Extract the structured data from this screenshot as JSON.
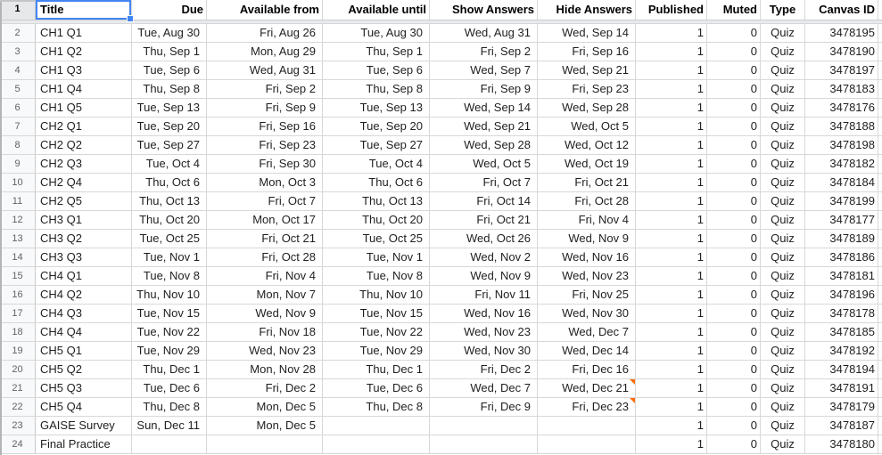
{
  "app": {
    "name": "spreadsheet-grid"
  },
  "colors": {
    "selection_blue": "#4285f4",
    "note_orange": "#ff6d01",
    "gridline": "#d8d8d8",
    "row_header_bg": "#f8f9fa",
    "row_header_selected_bg": "#e6e8ea",
    "frozen_divider_bg": "#e8eaed"
  },
  "sheet": {
    "selected_cell": {
      "row": "1",
      "column": "title"
    },
    "header_row_number": "1",
    "columns": [
      {
        "key": "title",
        "label": "Title",
        "align": "left",
        "kind": "text"
      },
      {
        "key": "due",
        "label": "Due",
        "align": "right",
        "kind": "date"
      },
      {
        "key": "available_from",
        "label": "Available from",
        "align": "right",
        "kind": "date"
      },
      {
        "key": "available_until",
        "label": "Available until",
        "align": "right",
        "kind": "date"
      },
      {
        "key": "show_answers",
        "label": "Show Answers",
        "align": "right",
        "kind": "date"
      },
      {
        "key": "hide_answers",
        "label": "Hide Answers",
        "align": "right",
        "kind": "date"
      },
      {
        "key": "published",
        "label": "Published",
        "align": "right",
        "kind": "number"
      },
      {
        "key": "muted",
        "label": "Muted",
        "align": "right",
        "kind": "number"
      },
      {
        "key": "type",
        "label": "Type",
        "align": "center",
        "kind": "text"
      },
      {
        "key": "canvas_id",
        "label": "Canvas ID",
        "align": "right",
        "kind": "number"
      }
    ],
    "rows": [
      {
        "n": "2",
        "title": "CH1 Q1",
        "due": "Tue, Aug 30",
        "available_from": "Fri, Aug 26",
        "available_until": "Tue, Aug 30",
        "show_answers": "Wed, Aug 31",
        "hide_answers": "Wed, Sep 14",
        "published": "1",
        "muted": "0",
        "type": "Quiz",
        "canvas_id": "3478195"
      },
      {
        "n": "3",
        "title": "CH1 Q2",
        "due": "Thu, Sep 1",
        "available_from": "Mon, Aug 29",
        "available_until": "Thu, Sep 1",
        "show_answers": "Fri, Sep 2",
        "hide_answers": "Fri, Sep 16",
        "published": "1",
        "muted": "0",
        "type": "Quiz",
        "canvas_id": "3478190"
      },
      {
        "n": "4",
        "title": "CH1 Q3",
        "due": "Tue, Sep 6",
        "available_from": "Wed, Aug 31",
        "available_until": "Tue, Sep 6",
        "show_answers": "Wed, Sep 7",
        "hide_answers": "Wed, Sep 21",
        "published": "1",
        "muted": "0",
        "type": "Quiz",
        "canvas_id": "3478197"
      },
      {
        "n": "5",
        "title": "CH1 Q4",
        "due": "Thu, Sep 8",
        "available_from": "Fri, Sep 2",
        "available_until": "Thu, Sep 8",
        "show_answers": "Fri, Sep 9",
        "hide_answers": "Fri, Sep 23",
        "published": "1",
        "muted": "0",
        "type": "Quiz",
        "canvas_id": "3478183"
      },
      {
        "n": "6",
        "title": "CH1 Q5",
        "due": "Tue, Sep 13",
        "available_from": "Fri, Sep 9",
        "available_until": "Tue, Sep 13",
        "show_answers": "Wed, Sep 14",
        "hide_answers": "Wed, Sep 28",
        "published": "1",
        "muted": "0",
        "type": "Quiz",
        "canvas_id": "3478176"
      },
      {
        "n": "7",
        "title": "CH2 Q1",
        "due": "Tue, Sep 20",
        "available_from": "Fri, Sep 16",
        "available_until": "Tue, Sep 20",
        "show_answers": "Wed, Sep 21",
        "hide_answers": "Wed, Oct 5",
        "published": "1",
        "muted": "0",
        "type": "Quiz",
        "canvas_id": "3478188"
      },
      {
        "n": "8",
        "title": "CH2 Q2",
        "due": "Tue, Sep 27",
        "available_from": "Fri, Sep 23",
        "available_until": "Tue, Sep 27",
        "show_answers": "Wed, Sep 28",
        "hide_answers": "Wed, Oct 12",
        "published": "1",
        "muted": "0",
        "type": "Quiz",
        "canvas_id": "3478198"
      },
      {
        "n": "9",
        "title": "CH2 Q3",
        "due": "Tue, Oct 4",
        "available_from": "Fri, Sep 30",
        "available_until": "Tue, Oct 4",
        "show_answers": "Wed, Oct 5",
        "hide_answers": "Wed, Oct 19",
        "published": "1",
        "muted": "0",
        "type": "Quiz",
        "canvas_id": "3478182"
      },
      {
        "n": "10",
        "title": "CH2 Q4",
        "due": "Thu, Oct 6",
        "available_from": "Mon, Oct 3",
        "available_until": "Thu, Oct 6",
        "show_answers": "Fri, Oct 7",
        "hide_answers": "Fri, Oct 21",
        "published": "1",
        "muted": "0",
        "type": "Quiz",
        "canvas_id": "3478184"
      },
      {
        "n": "11",
        "title": "CH2 Q5",
        "due": "Thu, Oct 13",
        "available_from": "Fri, Oct 7",
        "available_until": "Thu, Oct 13",
        "show_answers": "Fri, Oct 14",
        "hide_answers": "Fri, Oct 28",
        "published": "1",
        "muted": "0",
        "type": "Quiz",
        "canvas_id": "3478199"
      },
      {
        "n": "12",
        "title": "CH3 Q1",
        "due": "Thu, Oct 20",
        "available_from": "Mon, Oct 17",
        "available_until": "Thu, Oct 20",
        "show_answers": "Fri, Oct 21",
        "hide_answers": "Fri, Nov 4",
        "published": "1",
        "muted": "0",
        "type": "Quiz",
        "canvas_id": "3478177"
      },
      {
        "n": "13",
        "title": "CH3 Q2",
        "due": "Tue, Oct 25",
        "available_from": "Fri, Oct 21",
        "available_until": "Tue, Oct 25",
        "show_answers": "Wed, Oct 26",
        "hide_answers": "Wed, Nov 9",
        "published": "1",
        "muted": "0",
        "type": "Quiz",
        "canvas_id": "3478189"
      },
      {
        "n": "14",
        "title": "CH3 Q3",
        "due": "Tue, Nov 1",
        "available_from": "Fri, Oct 28",
        "available_until": "Tue, Nov 1",
        "show_answers": "Wed, Nov 2",
        "hide_answers": "Wed, Nov 16",
        "published": "1",
        "muted": "0",
        "type": "Quiz",
        "canvas_id": "3478186"
      },
      {
        "n": "15",
        "title": "CH4 Q1",
        "due": "Tue, Nov 8",
        "available_from": "Fri, Nov 4",
        "available_until": "Tue, Nov 8",
        "show_answers": "Wed, Nov 9",
        "hide_answers": "Wed, Nov 23",
        "published": "1",
        "muted": "0",
        "type": "Quiz",
        "canvas_id": "3478181"
      },
      {
        "n": "16",
        "title": "CH4 Q2",
        "due": "Thu, Nov 10",
        "available_from": "Mon, Nov 7",
        "available_until": "Thu, Nov 10",
        "show_answers": "Fri, Nov 11",
        "hide_answers": "Fri, Nov 25",
        "published": "1",
        "muted": "0",
        "type": "Quiz",
        "canvas_id": "3478196"
      },
      {
        "n": "17",
        "title": "CH4 Q3",
        "due": "Tue, Nov 15",
        "available_from": "Wed, Nov 9",
        "available_until": "Tue, Nov 15",
        "show_answers": "Wed, Nov 16",
        "hide_answers": "Wed, Nov 30",
        "published": "1",
        "muted": "0",
        "type": "Quiz",
        "canvas_id": "3478178"
      },
      {
        "n": "18",
        "title": "CH4 Q4",
        "due": "Tue, Nov 22",
        "available_from": "Fri, Nov 18",
        "available_until": "Tue, Nov 22",
        "show_answers": "Wed, Nov 23",
        "hide_answers": "Wed, Dec 7",
        "published": "1",
        "muted": "0",
        "type": "Quiz",
        "canvas_id": "3478185"
      },
      {
        "n": "19",
        "title": "CH5 Q1",
        "due": "Tue, Nov 29",
        "available_from": "Wed, Nov 23",
        "available_until": "Tue, Nov 29",
        "show_answers": "Wed, Nov 30",
        "hide_answers": "Wed, Dec 14",
        "published": "1",
        "muted": "0",
        "type": "Quiz",
        "canvas_id": "3478192"
      },
      {
        "n": "20",
        "title": "CH5 Q2",
        "due": "Thu, Dec 1",
        "available_from": "Mon, Nov 28",
        "available_until": "Thu, Dec 1",
        "show_answers": "Fri, Dec 2",
        "hide_answers": "Fri, Dec 16",
        "published": "1",
        "muted": "0",
        "type": "Quiz",
        "canvas_id": "3478194"
      },
      {
        "n": "21",
        "title": "CH5 Q3",
        "due": "Tue, Dec 6",
        "available_from": "Fri, Dec 2",
        "available_until": "Tue, Dec 6",
        "show_answers": "Wed, Dec 7",
        "hide_answers": "Wed, Dec 21",
        "published": "1",
        "muted": "0",
        "type": "Quiz",
        "canvas_id": "3478191",
        "notes": [
          "hide_answers"
        ]
      },
      {
        "n": "22",
        "title": "CH5 Q4",
        "due": "Thu, Dec 8",
        "available_from": "Mon, Dec 5",
        "available_until": "Thu, Dec 8",
        "show_answers": "Fri, Dec 9",
        "hide_answers": "Fri, Dec 23",
        "published": "1",
        "muted": "0",
        "type": "Quiz",
        "canvas_id": "3478179",
        "notes": [
          "hide_answers"
        ]
      },
      {
        "n": "23",
        "title": "GAISE Survey",
        "due": "Sun, Dec 11",
        "available_from": "Mon, Dec 5",
        "available_until": "",
        "show_answers": "",
        "hide_answers": "",
        "published": "1",
        "muted": "0",
        "type": "Quiz",
        "canvas_id": "3478187"
      },
      {
        "n": "24",
        "title": "Final Practice",
        "due": "",
        "available_from": "",
        "available_until": "",
        "show_answers": "",
        "hide_answers": "",
        "published": "1",
        "muted": "0",
        "type": "Quiz",
        "canvas_id": "3478180"
      }
    ]
  }
}
